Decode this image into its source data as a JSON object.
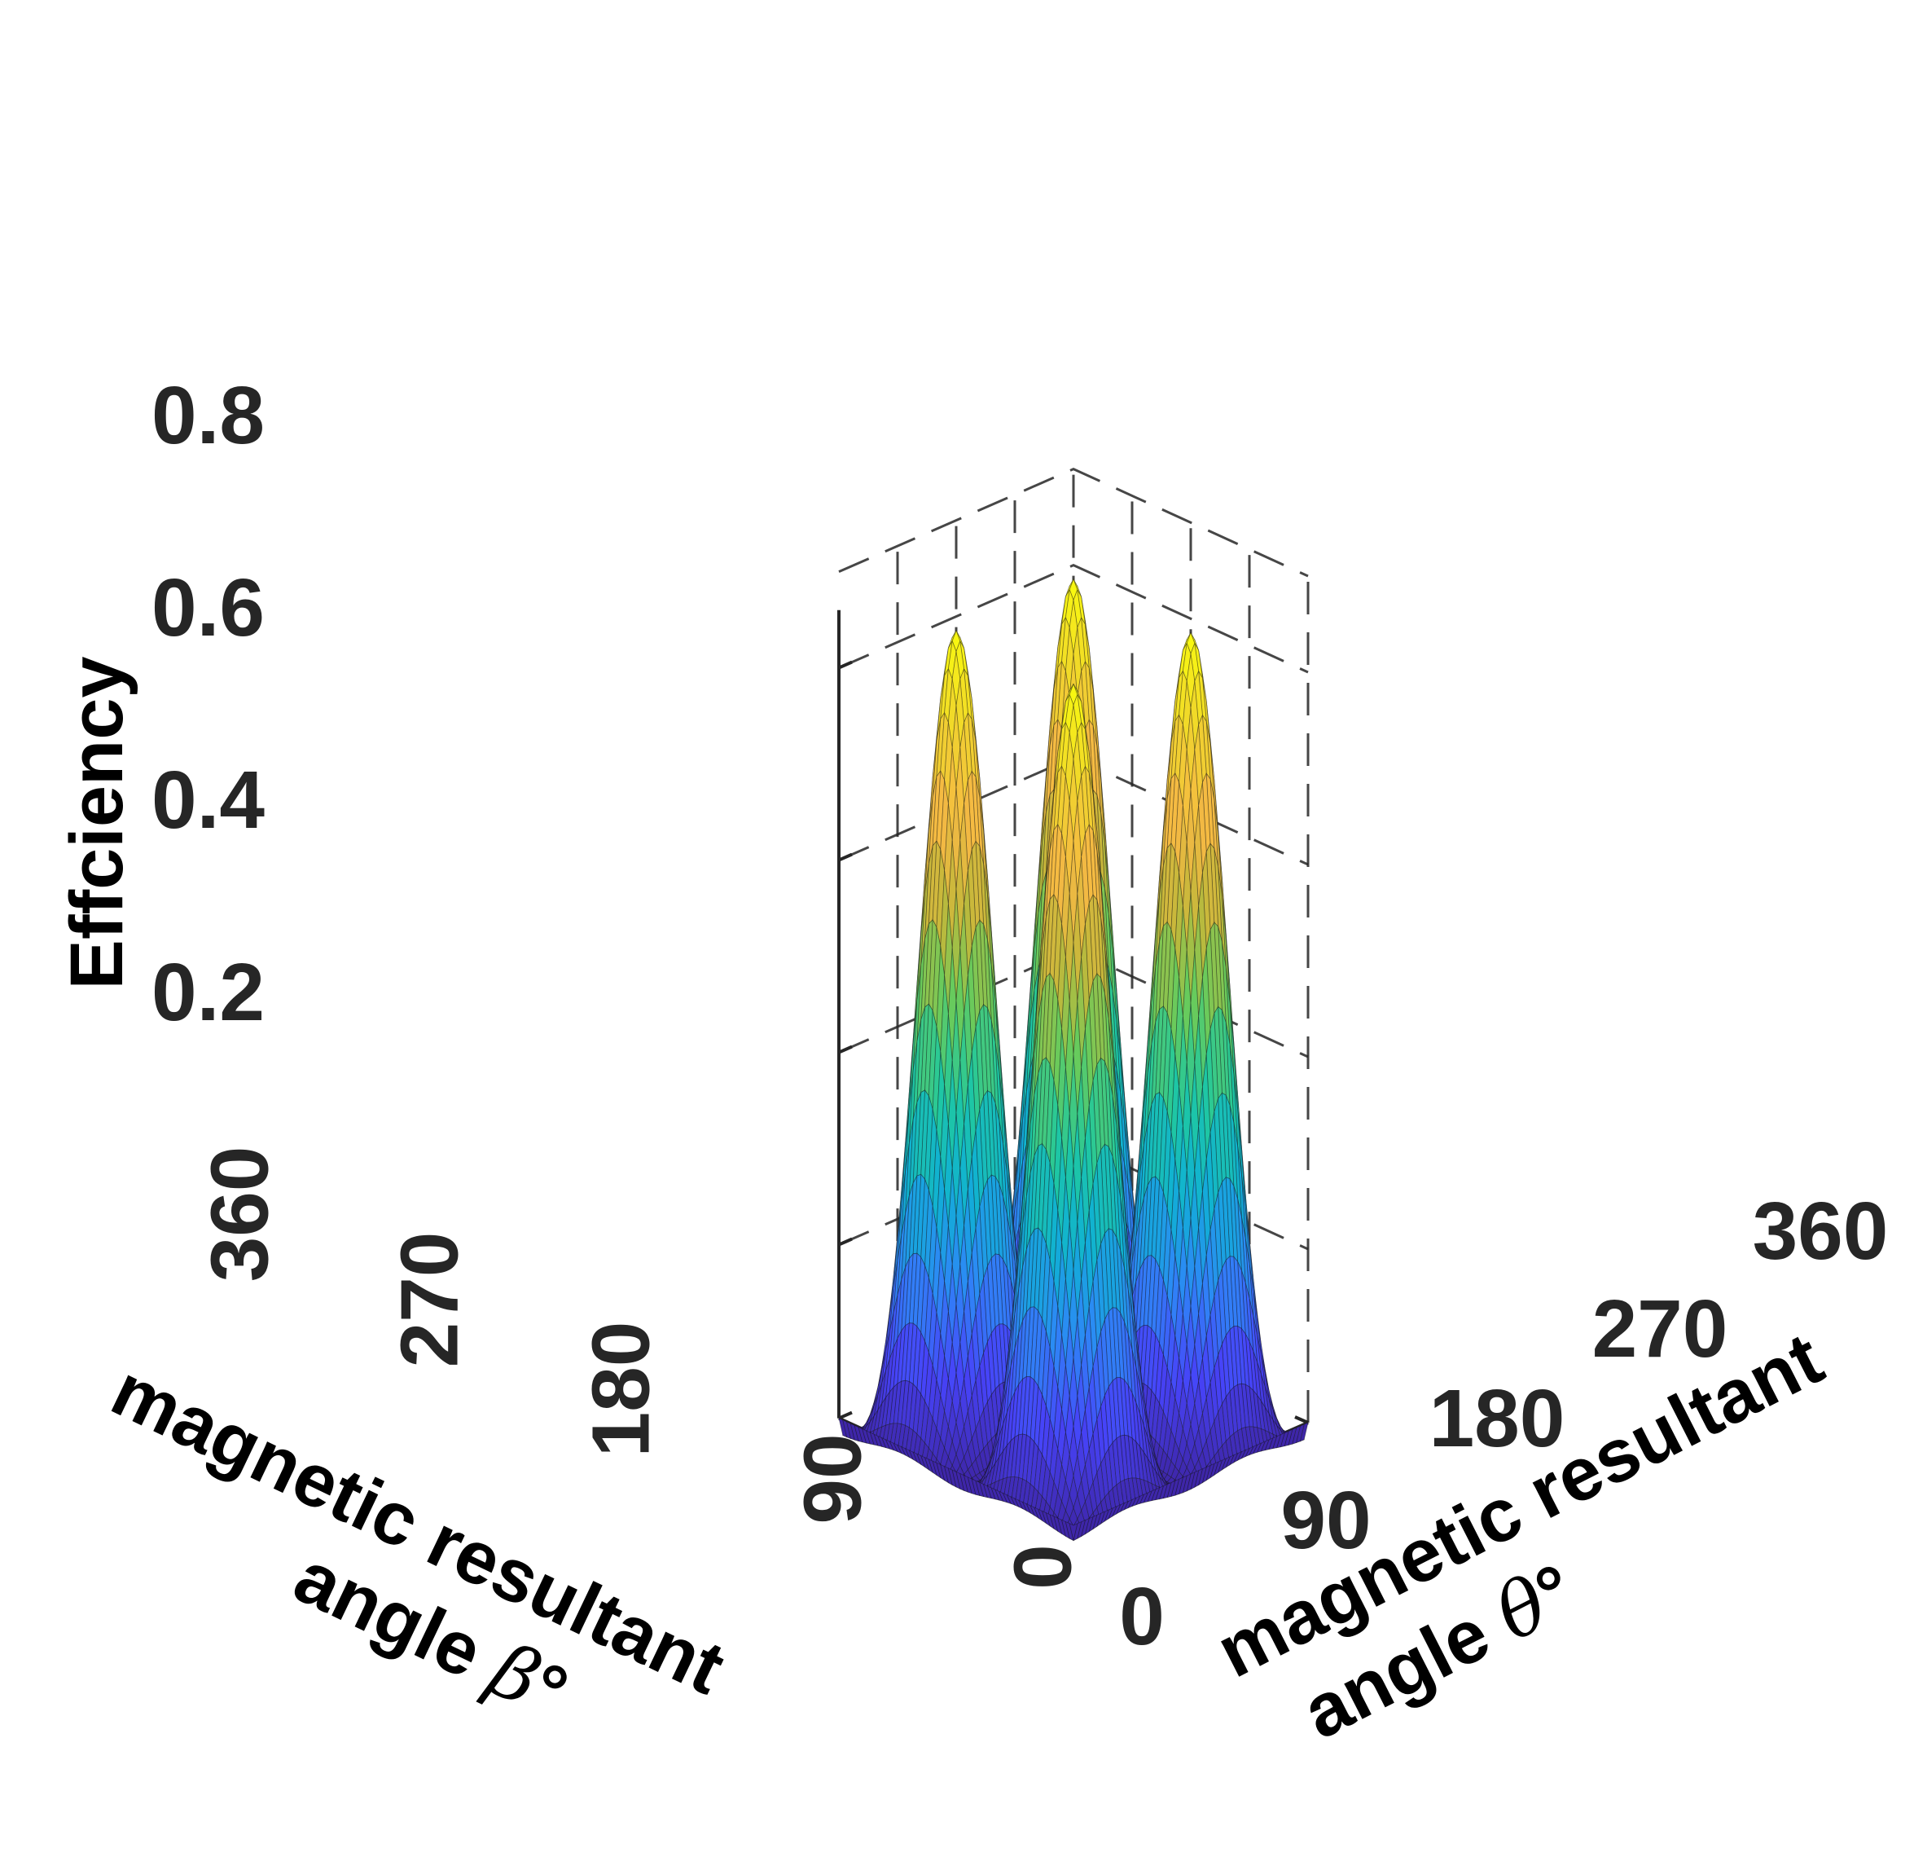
{
  "chart_data": {
    "type": "surface",
    "title": "",
    "function": "Efficiency = 0.84 * sin(beta)^2 * sin(theta)^2 (peaks near 0.84, floor 0)",
    "peak_value": 0.84,
    "peaks": [
      {
        "beta": 90,
        "theta": 90,
        "z": 0.84
      },
      {
        "beta": 90,
        "theta": 270,
        "z": 0.84
      },
      {
        "beta": 270,
        "theta": 90,
        "z": 0.84
      },
      {
        "beta": 270,
        "theta": 270,
        "z": 0.84
      }
    ],
    "xaxis": {
      "label": "magnetic resultant angle θ°",
      "label_line1": "magnetic resultant",
      "label_line2_text": "angle ",
      "label_symbol": "θ",
      "label_degree": "°",
      "ticks": [
        "0",
        "90",
        "180",
        "270",
        "360"
      ],
      "range": [
        0,
        360
      ]
    },
    "yaxis": {
      "label": "magnetic resultant angle β°",
      "label_line1": "magnetic resultant",
      "label_line2_text": "angle ",
      "label_symbol": "β",
      "label_degree": "°",
      "ticks": [
        "0",
        "90",
        "180",
        "270",
        "360"
      ],
      "range": [
        0,
        360
      ]
    },
    "zaxis": {
      "label": "Effciency",
      "ticks": [
        "0.2",
        "0.4",
        "0.6",
        "0.8"
      ],
      "range": [
        0,
        0.84
      ]
    },
    "colormap": "parula",
    "colormap_stops": [
      "#3e26a8",
      "#4743f8",
      "#2e87f7",
      "#0fb1d4",
      "#1fc8a0",
      "#66cb5d",
      "#c3b83a",
      "#f5b944",
      "#f0d42d",
      "#f9fb0e"
    ],
    "grid": true,
    "box": "open 3D axes with dashed back-plane gridlines"
  }
}
